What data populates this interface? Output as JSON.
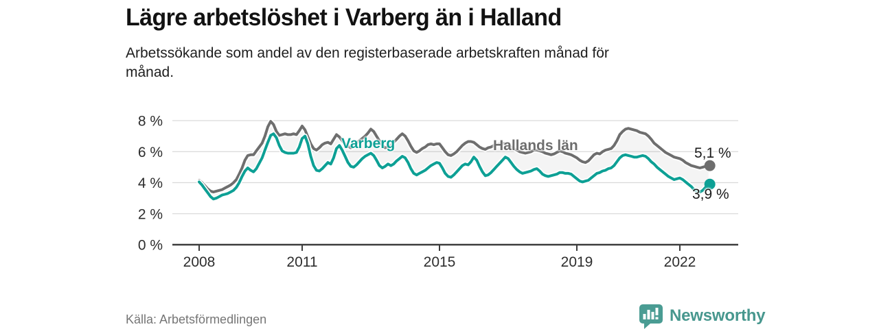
{
  "header": {
    "title": "Lägre arbetslöshet i Varberg än i Halland",
    "subtitle_line1": "Arbetssökande som andel av den registerbaserade arbetskraften månad för",
    "subtitle_line2": "månad."
  },
  "footer": {
    "source": "Källa: Arbetsförmedlingen",
    "brand": "Newsworthy"
  },
  "colors": {
    "varberg": "#0da095",
    "hallands": "#6e6e6e",
    "grid": "#d9d9d9",
    "axis": "#3c3c3c",
    "tick_text": "#2e2e2e",
    "band": "rgba(110,110,110,0.08)",
    "logo": "#4a9c93"
  },
  "chart_data": {
    "type": "line",
    "title": "Lägre arbetslöshet i Varberg än i Halland",
    "subtitle": "Arbetssökande som andel av den registerbaserade arbetskraften månad för månad.",
    "unit": "%",
    "grid": true,
    "x_start_year": 2008,
    "x_step_months": 1,
    "xlim": [
      2007.3,
      2023.7
    ],
    "ylim": [
      0,
      8.6
    ],
    "x_ticks": [
      {
        "value": 2008,
        "label": "2008"
      },
      {
        "value": 2011,
        "label": "2011"
      },
      {
        "value": 2015,
        "label": "2015"
      },
      {
        "value": 2019,
        "label": "2019"
      },
      {
        "value": 2022,
        "label": "2022"
      }
    ],
    "y_ticks": [
      {
        "value": 0,
        "label": "0 %"
      },
      {
        "value": 2,
        "label": "2 %"
      },
      {
        "value": 4,
        "label": "4 %"
      },
      {
        "value": 6,
        "label": "6 %"
      },
      {
        "value": 8,
        "label": "8 %"
      }
    ],
    "series": [
      {
        "name": "Hallands län",
        "color": "#6e6e6e",
        "end_label": "5,1 %",
        "end_value": 5.1,
        "values": [
          4.15,
          4.0,
          3.8,
          3.6,
          3.45,
          3.4,
          3.45,
          3.5,
          3.55,
          3.65,
          3.75,
          3.85,
          4.0,
          4.2,
          4.55,
          4.95,
          5.45,
          5.75,
          5.8,
          5.8,
          6.05,
          6.3,
          6.55,
          7.0,
          7.6,
          7.95,
          7.75,
          7.3,
          7.05,
          7.1,
          7.15,
          7.1,
          7.1,
          7.15,
          7.1,
          7.35,
          7.65,
          7.4,
          6.95,
          6.5,
          6.2,
          6.1,
          6.25,
          6.45,
          6.55,
          6.6,
          6.5,
          6.8,
          7.1,
          6.95,
          6.7,
          6.5,
          6.35,
          6.25,
          6.35,
          6.55,
          6.7,
          6.85,
          7.0,
          7.2,
          7.45,
          7.3,
          7.0,
          6.7,
          6.4,
          6.25,
          6.3,
          6.4,
          6.6,
          6.8,
          7.0,
          7.15,
          7.0,
          6.7,
          6.35,
          6.05,
          5.95,
          6.05,
          6.2,
          6.3,
          6.45,
          6.5,
          6.45,
          6.5,
          6.5,
          6.25,
          6.0,
          5.8,
          5.75,
          5.85,
          6.0,
          6.2,
          6.4,
          6.55,
          6.65,
          6.65,
          6.6,
          6.45,
          6.3,
          6.2,
          6.15,
          6.25,
          6.3,
          6.4,
          6.45,
          6.5,
          6.55,
          6.5,
          6.45,
          6.3,
          6.2,
          6.1,
          6.0,
          5.95,
          5.9,
          5.95,
          6.0,
          6.1,
          6.1,
          6.05,
          6.0,
          5.9,
          5.85,
          5.8,
          5.85,
          5.95,
          6.05,
          6.0,
          5.9,
          5.85,
          5.8,
          5.7,
          5.6,
          5.45,
          5.35,
          5.3,
          5.4,
          5.6,
          5.8,
          5.9,
          5.85,
          6.0,
          6.1,
          6.15,
          6.2,
          6.4,
          6.7,
          7.1,
          7.3,
          7.45,
          7.5,
          7.45,
          7.4,
          7.35,
          7.25,
          7.2,
          7.15,
          7.0,
          6.8,
          6.55,
          6.4,
          6.25,
          6.1,
          5.95,
          5.85,
          5.75,
          5.65,
          5.6,
          5.55,
          5.45,
          5.3,
          5.2,
          5.1,
          5.05,
          5.0,
          4.95,
          5.0,
          5.05,
          5.1
        ]
      },
      {
        "name": "Varberg",
        "color": "#0da095",
        "end_label": "3,9 %",
        "end_value": 3.9,
        "values": [
          4.05,
          3.85,
          3.6,
          3.35,
          3.1,
          2.95,
          3.0,
          3.1,
          3.2,
          3.25,
          3.3,
          3.4,
          3.5,
          3.7,
          4.0,
          4.4,
          4.75,
          4.95,
          4.8,
          4.7,
          4.9,
          5.25,
          5.6,
          6.1,
          6.6,
          7.05,
          7.15,
          6.9,
          6.4,
          6.05,
          5.95,
          5.9,
          5.9,
          5.9,
          5.95,
          6.3,
          6.85,
          7.0,
          6.5,
          5.7,
          5.1,
          4.8,
          4.75,
          4.9,
          5.1,
          5.3,
          5.2,
          5.6,
          6.2,
          6.4,
          6.1,
          5.7,
          5.3,
          5.05,
          5.0,
          5.15,
          5.35,
          5.55,
          5.7,
          5.8,
          5.9,
          5.75,
          5.45,
          5.1,
          4.95,
          5.05,
          5.2,
          5.1,
          5.2,
          5.4,
          5.55,
          5.7,
          5.6,
          5.3,
          4.9,
          4.6,
          4.5,
          4.6,
          4.7,
          4.8,
          4.95,
          5.1,
          5.2,
          5.3,
          5.25,
          4.95,
          4.6,
          4.4,
          4.35,
          4.5,
          4.7,
          4.9,
          5.1,
          5.2,
          5.15,
          5.35,
          5.65,
          5.45,
          5.05,
          4.7,
          4.45,
          4.5,
          4.65,
          4.85,
          5.05,
          5.25,
          5.45,
          5.65,
          5.55,
          5.3,
          5.05,
          4.85,
          4.7,
          4.6,
          4.65,
          4.7,
          4.75,
          4.85,
          4.9,
          4.75,
          4.55,
          4.45,
          4.4,
          4.45,
          4.5,
          4.55,
          4.65,
          4.65,
          4.6,
          4.6,
          4.55,
          4.4,
          4.25,
          4.1,
          4.05,
          4.1,
          4.15,
          4.3,
          4.45,
          4.6,
          4.65,
          4.75,
          4.8,
          4.9,
          4.95,
          5.1,
          5.35,
          5.6,
          5.75,
          5.8,
          5.75,
          5.7,
          5.65,
          5.65,
          5.7,
          5.75,
          5.7,
          5.55,
          5.35,
          5.2,
          5.0,
          4.85,
          4.7,
          4.55,
          4.4,
          4.3,
          4.2,
          4.25,
          4.3,
          4.2,
          4.05,
          3.9,
          3.75,
          3.55,
          3.45,
          3.4,
          3.5,
          3.7,
          3.9
        ]
      }
    ]
  }
}
